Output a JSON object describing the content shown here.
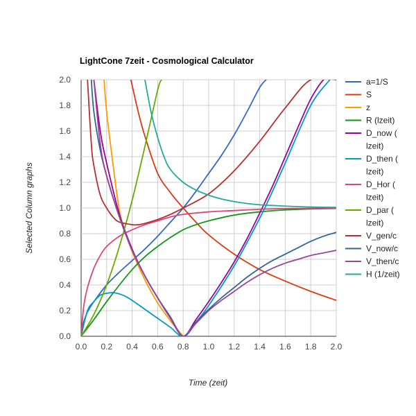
{
  "chart_data": {
    "type": "line",
    "title": "LightCone 7zeit - Cosmological Calculator",
    "xlabel": "Time (zeit)",
    "ylabel": "Selected Column graphs",
    "xlim": [
      0,
      2
    ],
    "ylim": [
      0,
      2
    ],
    "x_ticks": [
      "0.0",
      "0.2",
      "0.4",
      "0.6",
      "0.8",
      "1.0",
      "1.2",
      "1.4",
      "1.6",
      "1.8",
      "2.0"
    ],
    "y_ticks": [
      "0.0",
      "0.2",
      "0.4",
      "0.6",
      "0.8",
      "1.0",
      "1.2",
      "1.4",
      "1.6",
      "1.8",
      "2.0"
    ],
    "grid": true,
    "legend_position": "right",
    "series": [
      {
        "name": "a=1/S",
        "legend_lines": [
          "a=1/S"
        ],
        "color": "#3366cc",
        "x": [
          0,
          0.02,
          0.05,
          0.1,
          0.2,
          0.3,
          0.4,
          0.5,
          0.6,
          0.7,
          0.8,
          0.9,
          1.0,
          1.1,
          1.2,
          1.3,
          1.4,
          1.45
        ],
        "y": [
          0,
          0.11,
          0.19,
          0.27,
          0.4,
          0.5,
          0.59,
          0.68,
          0.78,
          0.89,
          1.0,
          1.13,
          1.27,
          1.41,
          1.57,
          1.75,
          1.94,
          2.0
        ]
      },
      {
        "name": "S",
        "legend_lines": [
          "S"
        ],
        "color": "#dc3912",
        "x": [
          0.39,
          0.45,
          0.5,
          0.6,
          0.7,
          0.8,
          0.9,
          1.0,
          1.2,
          1.4,
          1.6,
          1.8,
          2.0
        ],
        "y": [
          2.0,
          1.74,
          1.56,
          1.27,
          1.12,
          1.0,
          0.89,
          0.79,
          0.64,
          0.52,
          0.43,
          0.35,
          0.28
        ]
      },
      {
        "name": "z",
        "legend_lines": [
          "z"
        ],
        "color": "#ff9900",
        "x": [
          0.18,
          0.2,
          0.25,
          0.3,
          0.35,
          0.4,
          0.5,
          0.6,
          0.7,
          0.8
        ],
        "y": [
          2.0,
          1.75,
          1.34,
          0.98,
          0.8,
          0.66,
          0.44,
          0.26,
          0.12,
          0.0
        ]
      },
      {
        "name": "R (lzeit)",
        "legend_lines": [
          "R (lzeit)"
        ],
        "color": "#109618",
        "x": [
          0,
          0.1,
          0.2,
          0.3,
          0.4,
          0.5,
          0.6,
          0.7,
          0.8,
          0.9,
          1.0,
          1.2,
          1.4,
          1.6,
          1.8,
          2.0
        ],
        "y": [
          0,
          0.13,
          0.27,
          0.4,
          0.52,
          0.62,
          0.7,
          0.77,
          0.83,
          0.87,
          0.9,
          0.945,
          0.97,
          0.985,
          0.993,
          0.997
        ]
      },
      {
        "name": "D_now (lzeit)",
        "legend_lines": [
          "D_now (",
          "lzeit)"
        ],
        "color": "#990099",
        "x": [
          0.1,
          0.15,
          0.2,
          0.3,
          0.4,
          0.5,
          0.6,
          0.7,
          0.8,
          0.9,
          1.0,
          1.1,
          1.2,
          1.3,
          1.4,
          1.5,
          1.6,
          1.7,
          1.8,
          1.9,
          1.95
        ],
        "y": [
          2.0,
          1.6,
          1.35,
          0.95,
          0.68,
          0.47,
          0.3,
          0.14,
          0.0,
          0.13,
          0.27,
          0.42,
          0.58,
          0.76,
          0.96,
          1.17,
          1.4,
          1.63,
          1.85,
          2.0,
          2.0
        ]
      },
      {
        "name": "D_then (lzeit)",
        "legend_lines": [
          "D_then (",
          "lzeit)"
        ],
        "color": "#0099c6",
        "x": [
          0,
          0.05,
          0.1,
          0.15,
          0.2,
          0.25,
          0.3,
          0.35,
          0.4,
          0.5,
          0.6,
          0.7,
          0.8,
          0.9,
          1.0,
          1.2,
          1.4,
          1.5,
          1.6,
          1.8,
          1.95
        ],
        "y": [
          0,
          0.2,
          0.27,
          0.32,
          0.335,
          0.34,
          0.33,
          0.31,
          0.28,
          0.21,
          0.14,
          0.07,
          0.0,
          0.11,
          0.24,
          0.55,
          0.92,
          1.13,
          1.35,
          1.8,
          2.0
        ]
      },
      {
        "name": "D_Hor (lzeit)",
        "legend_lines": [
          "D_Hor (",
          "lzeit)"
        ],
        "color": "#dd4477",
        "x": [
          0,
          0.02,
          0.05,
          0.1,
          0.15,
          0.2,
          0.3,
          0.4,
          0.5,
          0.6,
          0.7,
          0.8,
          1.0,
          1.2,
          1.4,
          1.6,
          1.8,
          2.0
        ],
        "y": [
          0,
          0.23,
          0.38,
          0.53,
          0.63,
          0.7,
          0.78,
          0.83,
          0.87,
          0.9,
          0.93,
          0.95,
          0.97,
          0.98,
          0.99,
          0.995,
          0.998,
          1.0
        ]
      },
      {
        "name": "D_par (lzeit)",
        "legend_lines": [
          "D_par (",
          "lzeit)"
        ],
        "color": "#66aa00",
        "x": [
          0,
          0.1,
          0.2,
          0.3,
          0.4,
          0.5,
          0.6,
          0.63
        ],
        "y": [
          0,
          0.17,
          0.4,
          0.7,
          1.06,
          1.48,
          1.92,
          2.0
        ]
      },
      {
        "name": "V_gen/c",
        "legend_lines": [
          "V_gen/c"
        ],
        "color": "#b82e2e",
        "x": [
          0.05,
          0.08,
          0.1,
          0.15,
          0.2,
          0.25,
          0.3,
          0.4,
          0.45,
          0.5,
          0.6,
          0.7,
          0.8,
          1.0,
          1.2,
          1.4,
          1.6,
          1.8,
          2.0
        ],
        "y": [
          2.0,
          1.5,
          1.33,
          1.1,
          1.0,
          0.93,
          0.89,
          0.87,
          0.87,
          0.88,
          0.91,
          0.95,
          1.0,
          1.11,
          1.29,
          1.52,
          1.78,
          2.0,
          2.0
        ]
      },
      {
        "name": "V_now/c",
        "legend_lines": [
          "V_now/c"
        ],
        "color": "#316395",
        "x": [
          0.08,
          0.1,
          0.15,
          0.2,
          0.3,
          0.4,
          0.5,
          0.6,
          0.7,
          0.8,
          0.9,
          1.0,
          1.1,
          1.2,
          1.3,
          1.4,
          1.5,
          1.6,
          1.7,
          1.8,
          1.9,
          2.0
        ],
        "y": [
          2.0,
          1.75,
          1.45,
          1.25,
          0.93,
          0.67,
          0.47,
          0.3,
          0.15,
          0.0,
          0.11,
          0.21,
          0.3,
          0.38,
          0.46,
          0.53,
          0.59,
          0.64,
          0.69,
          0.74,
          0.78,
          0.81
        ]
      },
      {
        "name": "V_then/c",
        "legend_lines": [
          "V_then/c"
        ],
        "color": "#994499",
        "x": [
          0.1,
          0.15,
          0.2,
          0.3,
          0.4,
          0.5,
          0.6,
          0.7,
          0.8,
          0.9,
          1.0,
          1.1,
          1.2,
          1.3,
          1.4,
          1.5,
          1.6,
          1.7,
          1.8,
          1.9,
          2.0
        ],
        "y": [
          2.0,
          1.5,
          1.25,
          0.93,
          0.67,
          0.47,
          0.3,
          0.14,
          0.0,
          0.1,
          0.2,
          0.28,
          0.35,
          0.42,
          0.48,
          0.53,
          0.57,
          0.6,
          0.63,
          0.65,
          0.67
        ]
      },
      {
        "name": "H (1/zeit)",
        "legend_lines": [
          "H (1/zeit)"
        ],
        "color": "#22aa99",
        "x": [
          0.5,
          0.55,
          0.6,
          0.65,
          0.7,
          0.8,
          0.9,
          1.0,
          1.1,
          1.2,
          1.3,
          1.4,
          1.5,
          1.6,
          1.8,
          2.0
        ],
        "y": [
          2.0,
          1.74,
          1.55,
          1.4,
          1.3,
          1.2,
          1.14,
          1.1,
          1.07,
          1.05,
          1.035,
          1.025,
          1.02,
          1.015,
          1.008,
          1.005
        ]
      }
    ]
  }
}
